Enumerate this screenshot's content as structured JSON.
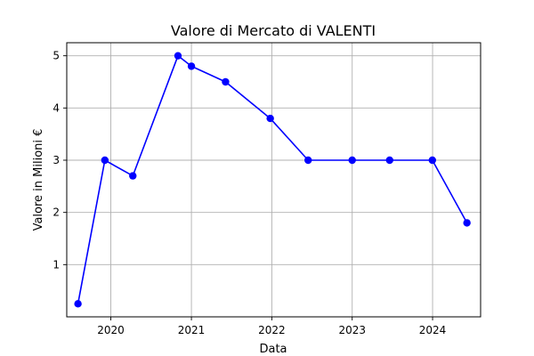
{
  "chart_data": {
    "type": "line",
    "title": "Valore di Mercato di VALENTI",
    "xlabel": "Data",
    "ylabel": "Valore in Milioni €",
    "x_axis_type": "date",
    "xlim": [
      "2019-06-15",
      "2024-08-06"
    ],
    "ylim": [
      0.0,
      5.25
    ],
    "x_ticks": [
      "2020",
      "2021",
      "2022",
      "2023",
      "2024"
    ],
    "y_ticks": [
      "1",
      "2",
      "3",
      "4",
      "5"
    ],
    "grid": true,
    "series": [
      {
        "color": "#0000ff",
        "marker": "circle",
        "points": [
          {
            "x": "2019-08-05",
            "y": 0.25
          },
          {
            "x": "2019-12-05",
            "y": 3.0
          },
          {
            "x": "2020-04-10",
            "y": 2.7
          },
          {
            "x": "2020-11-01",
            "y": 5.0
          },
          {
            "x": "2021-01-01",
            "y": 4.8
          },
          {
            "x": "2021-06-05",
            "y": 4.5
          },
          {
            "x": "2021-12-25",
            "y": 3.8
          },
          {
            "x": "2022-06-15",
            "y": 3.0
          },
          {
            "x": "2023-01-01",
            "y": 3.0
          },
          {
            "x": "2023-06-20",
            "y": 3.0
          },
          {
            "x": "2023-12-31",
            "y": 3.0
          },
          {
            "x": "2024-06-05",
            "y": 1.8
          }
        ]
      }
    ]
  }
}
